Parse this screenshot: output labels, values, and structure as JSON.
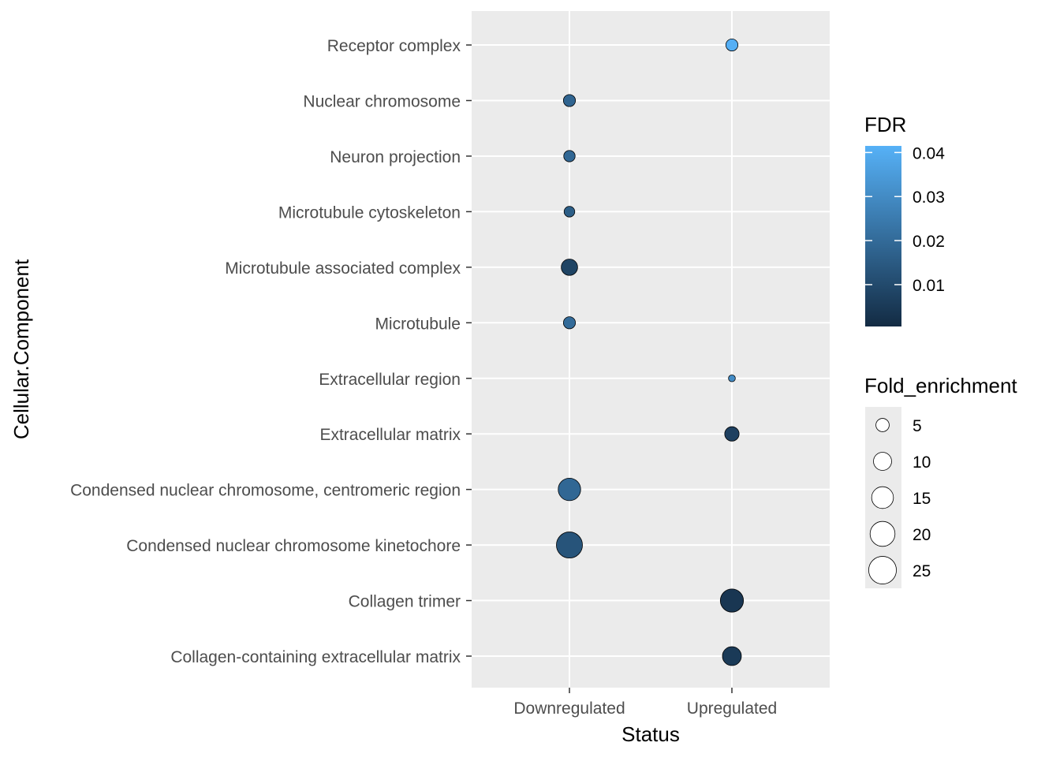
{
  "chart_data": {
    "type": "scatter",
    "xlabel": "Status",
    "ylabel": "Cellular.Component",
    "x_categories": [
      "Downregulated",
      "Upregulated"
    ],
    "y_categories": [
      "Collagen-containing extracellular matrix",
      "Collagen trimer",
      "Condensed nuclear chromosome kinetochore",
      "Condensed nuclear chromosome, centromeric region",
      "Extracellular matrix",
      "Extracellular region",
      "Microtubule",
      "Microtubule associated complex",
      "Microtubule cytoskeleton",
      "Neuron projection",
      "Nuclear chromosome",
      "Receptor complex"
    ],
    "points": [
      {
        "status": "Upregulated",
        "term": "Receptor complex",
        "fdr": 0.041,
        "fold_enrichment": 4
      },
      {
        "status": "Downregulated",
        "term": "Nuclear chromosome",
        "fdr": 0.018,
        "fold_enrichment": 4
      },
      {
        "status": "Downregulated",
        "term": "Neuron projection",
        "fdr": 0.019,
        "fold_enrichment": 3.5
      },
      {
        "status": "Downregulated",
        "term": "Microtubule cytoskeleton",
        "fdr": 0.016,
        "fold_enrichment": 3
      },
      {
        "status": "Downregulated",
        "term": "Microtubule associated complex",
        "fdr": 0.008,
        "fold_enrichment": 8
      },
      {
        "status": "Downregulated",
        "term": "Microtubule",
        "fdr": 0.02,
        "fold_enrichment": 4
      },
      {
        "status": "Upregulated",
        "term": "Extracellular region",
        "fdr": 0.03,
        "fold_enrichment": 1
      },
      {
        "status": "Upregulated",
        "term": "Extracellular matrix",
        "fdr": 0.007,
        "fold_enrichment": 6
      },
      {
        "status": "Downregulated",
        "term": "Condensed nuclear chromosome, centromeric region",
        "fdr": 0.019,
        "fold_enrichment": 16
      },
      {
        "status": "Downregulated",
        "term": "Condensed nuclear chromosome kinetochore",
        "fdr": 0.013,
        "fold_enrichment": 22
      },
      {
        "status": "Upregulated",
        "term": "Collagen trimer",
        "fdr": 0.004,
        "fold_enrichment": 17
      },
      {
        "status": "Upregulated",
        "term": "Collagen-containing extracellular matrix",
        "fdr": 0.005,
        "fold_enrichment": 11
      }
    ],
    "color_legend": {
      "title": "FDR",
      "ticks": [
        "0.04",
        "0.03",
        "0.02",
        "0.01"
      ],
      "tick_values": [
        0.04,
        0.03,
        0.02,
        0.01
      ],
      "range": [
        0.0005,
        0.0415
      ],
      "low_color": "#132B43",
      "high_color": "#56B1F7"
    },
    "size_legend": {
      "title": "Fold_enrichment",
      "ticks": [
        "5",
        "10",
        "15",
        "20",
        "25"
      ],
      "tick_values": [
        5,
        10,
        15,
        20,
        25
      ]
    },
    "grid": true,
    "panel_background": "#EBEBEB",
    "legend_position": "right"
  }
}
